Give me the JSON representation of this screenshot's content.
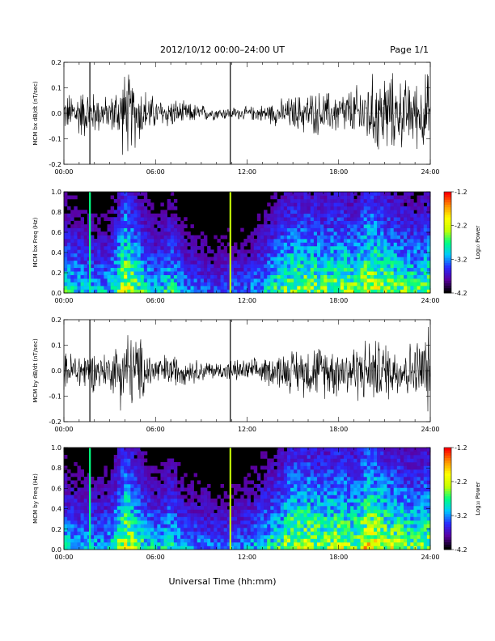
{
  "header": {
    "title": "2012/10/12  00:00–24:00 UT",
    "page": "Page 1/1"
  },
  "xaxis": {
    "ticks": [
      "00:00",
      "06:00",
      "12:00",
      "18:00",
      "24:00"
    ],
    "label": "Universal Time (hh:mm)"
  },
  "colorbar": {
    "ticks": [
      "-1.2",
      "-2.2",
      "-3.2",
      "-4.2"
    ],
    "title": "Log₁₀ Power",
    "colors": [
      "#000000",
      "#5a00a0",
      "#2a2aff",
      "#00c8ff",
      "#00ff80",
      "#c8ff00",
      "#ffff00",
      "#ff9000",
      "#ff0000"
    ]
  },
  "chart_data": [
    {
      "type": "line",
      "ylabel": "MCM bx dB/dt (nT/sec)",
      "ylim": [
        -0.2,
        0.2
      ],
      "yticks": [
        "0.2",
        "0.1",
        "0.0",
        "-0.1",
        "-0.2"
      ],
      "xlim": [
        0,
        24
      ],
      "envelope_hours": [
        0,
        1,
        2,
        3,
        4,
        5,
        6,
        7,
        8,
        9,
        10,
        11,
        12,
        13,
        14,
        15,
        16,
        17,
        18,
        19,
        20,
        21,
        22,
        23,
        24
      ],
      "envelope_amplitude": [
        0.08,
        0.12,
        0.1,
        0.07,
        0.2,
        0.14,
        0.07,
        0.07,
        0.05,
        0.04,
        0.03,
        0.03,
        0.03,
        0.04,
        0.06,
        0.08,
        0.1,
        0.1,
        0.1,
        0.12,
        0.17,
        0.2,
        0.16,
        0.15,
        0.2
      ],
      "spikes_hours": [
        1.7,
        10.9
      ],
      "color": "#000000"
    },
    {
      "type": "heatmap",
      "ylabel": "MCM bx Freq (Hz)",
      "ylim": [
        0.0,
        1.0
      ],
      "yticks": [
        "1.0",
        "0.8",
        "0.6",
        "0.4",
        "0.2",
        "0.0"
      ],
      "xlim": [
        0,
        24
      ],
      "zlim": [
        -4.2,
        -1.2
      ],
      "activity_hours": [
        0,
        1,
        2,
        3,
        4,
        5,
        6,
        7,
        8,
        9,
        10,
        11,
        12,
        13,
        14,
        15,
        16,
        17,
        18,
        19,
        20,
        21,
        22,
        23,
        24
      ],
      "activity_level": [
        0.55,
        0.5,
        0.45,
        0.45,
        0.8,
        0.6,
        0.45,
        0.55,
        0.4,
        0.35,
        0.3,
        0.35,
        0.35,
        0.45,
        0.6,
        0.7,
        0.7,
        0.65,
        0.7,
        0.65,
        0.8,
        0.7,
        0.65,
        0.6,
        0.65
      ],
      "line_hours": [
        1.7,
        10.9
      ]
    },
    {
      "type": "line",
      "ylabel": "MCM by dB/dt (nT/sec)",
      "ylim": [
        -0.2,
        0.2
      ],
      "yticks": [
        "0.2",
        "0.1",
        "0.0",
        "-0.1",
        "-0.2"
      ],
      "xlim": [
        0,
        24
      ],
      "envelope_hours": [
        0,
        1,
        2,
        3,
        4,
        5,
        6,
        7,
        8,
        9,
        10,
        11,
        12,
        13,
        14,
        15,
        16,
        17,
        18,
        19,
        20,
        21,
        22,
        23,
        24
      ],
      "envelope_amplitude": [
        0.08,
        0.1,
        0.09,
        0.08,
        0.2,
        0.15,
        0.07,
        0.08,
        0.06,
        0.05,
        0.04,
        0.05,
        0.05,
        0.06,
        0.08,
        0.1,
        0.12,
        0.12,
        0.12,
        0.13,
        0.15,
        0.14,
        0.12,
        0.14,
        0.2
      ],
      "spikes_hours": [
        1.7,
        10.9
      ],
      "color": "#000000"
    },
    {
      "type": "heatmap",
      "ylabel": "MCM by Freq (Hz)",
      "ylim": [
        0.0,
        1.0
      ],
      "yticks": [
        "1.0",
        "0.8",
        "0.6",
        "0.4",
        "0.2",
        "0.0"
      ],
      "xlim": [
        0,
        24
      ],
      "zlim": [
        -4.2,
        -1.2
      ],
      "activity_hours": [
        0,
        1,
        2,
        3,
        4,
        5,
        6,
        7,
        8,
        9,
        10,
        11,
        12,
        13,
        14,
        15,
        16,
        17,
        18,
        19,
        20,
        21,
        22,
        23,
        24
      ],
      "activity_level": [
        0.5,
        0.45,
        0.45,
        0.45,
        0.8,
        0.6,
        0.45,
        0.55,
        0.4,
        0.4,
        0.35,
        0.35,
        0.4,
        0.5,
        0.6,
        0.75,
        0.75,
        0.7,
        0.75,
        0.7,
        0.85,
        0.75,
        0.7,
        0.65,
        0.7
      ],
      "line_hours": [
        1.7,
        10.9
      ]
    }
  ]
}
